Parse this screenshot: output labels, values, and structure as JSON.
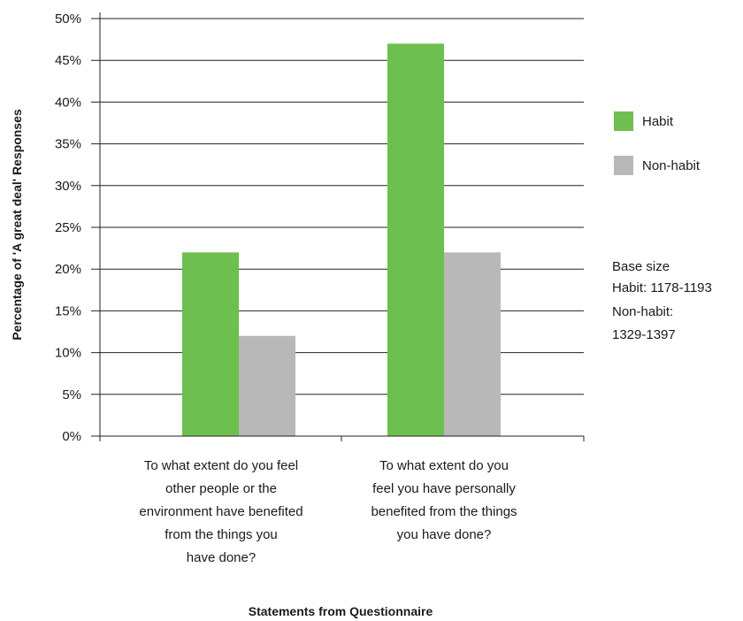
{
  "chart_data": {
    "type": "bar",
    "title": "",
    "xlabel": "Statements from Questionnaire",
    "ylabel": "Percentage of 'A great deal' Responses",
    "ylim": [
      0,
      50
    ],
    "yticks": [
      "0%",
      "5%",
      "10%",
      "15%",
      "20%",
      "25%",
      "30%",
      "35%",
      "40%",
      "45%",
      "50%"
    ],
    "grid": true,
    "legend_position": "right",
    "categories": [
      [
        "To what extent do you feel",
        "other people or the",
        "environment have benefited",
        "from the things you",
        "have done?"
      ],
      [
        "To what extent do you",
        "feel you have personally",
        "benefited from the things",
        "you have done?"
      ]
    ],
    "series": [
      {
        "name": "Habit",
        "color": "#6dbf4f",
        "values": [
          22,
          47
        ]
      },
      {
        "name": "Non-habit",
        "color": "#b8b8b8",
        "values": [
          12,
          22
        ]
      }
    ],
    "note": [
      "Base size",
      "Habit: 1178-1193",
      "Non-habit:",
      "1329-1397"
    ]
  }
}
